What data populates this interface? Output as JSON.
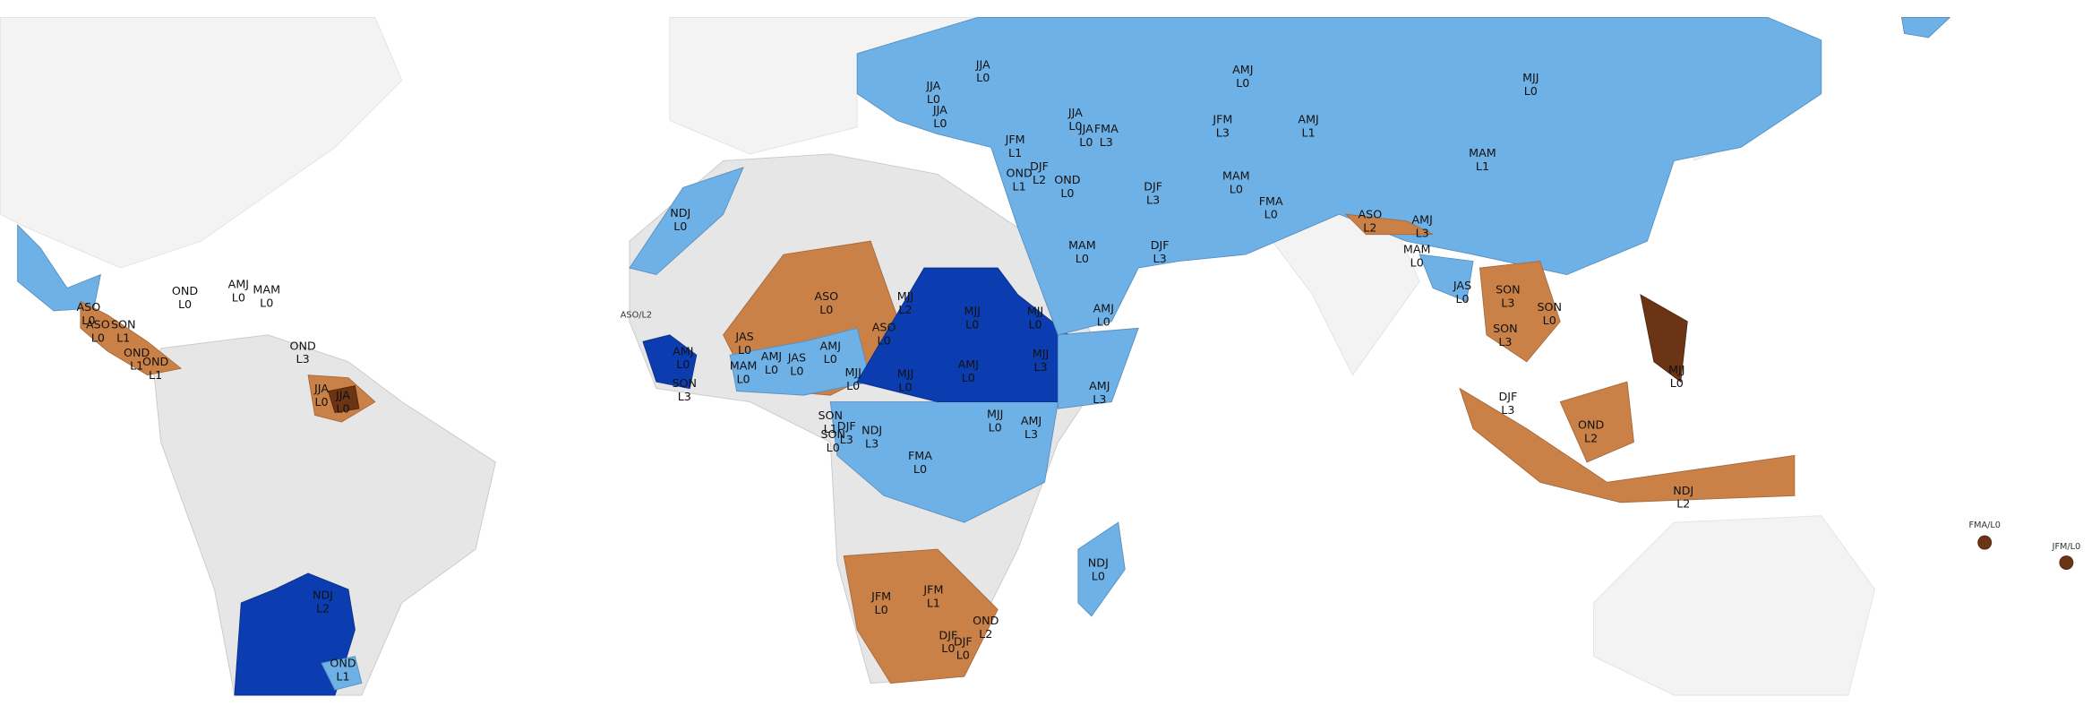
{
  "labels": [
    {
      "season": "NDJ",
      "level": "L0"
    },
    {
      "season": "JJA",
      "level": "L0"
    },
    {
      "season": "JJA",
      "level": "L0"
    },
    {
      "season": "JJA",
      "level": "L0"
    },
    {
      "season": "AMJ",
      "level": "L0"
    },
    {
      "season": "MJJ",
      "level": "L0"
    },
    {
      "season": "JFM",
      "level": "L3"
    },
    {
      "season": "AMJ",
      "level": "L1"
    },
    {
      "season": "JJA",
      "level": "L0"
    },
    {
      "season": "JJA",
      "level": "L0"
    },
    {
      "season": "FMA",
      "level": "L3"
    },
    {
      "season": "JFM",
      "level": "L1"
    },
    {
      "season": "MAM",
      "level": "L1"
    },
    {
      "season": "DJF",
      "level": "L2"
    },
    {
      "season": "OND",
      "level": "L1"
    },
    {
      "season": "OND",
      "level": "L0"
    },
    {
      "season": "DJF",
      "level": "L3"
    },
    {
      "season": "MAM",
      "level": "L0"
    },
    {
      "season": "FMA",
      "level": "L0"
    },
    {
      "season": "ASO",
      "level": "L2"
    },
    {
      "season": "AMJ",
      "level": "L3"
    },
    {
      "season": "MAM",
      "level": "L0"
    },
    {
      "season": "DJF",
      "level": "L3"
    },
    {
      "season": "MAM",
      "level": "L0"
    },
    {
      "season": "JAS",
      "level": "L0"
    },
    {
      "season": "SON",
      "level": "L3"
    },
    {
      "season": "SON",
      "level": "L0"
    },
    {
      "season": "SON",
      "level": "L3"
    },
    {
      "season": "ASO",
      "level": "L0"
    },
    {
      "season": "MJJ",
      "level": "L2"
    },
    {
      "season": "MJJ",
      "level": "L0"
    },
    {
      "season": "MJJ",
      "level": "L0"
    },
    {
      "season": "AMJ",
      "level": "L0"
    },
    {
      "season": "ASO",
      "level": "L0"
    },
    {
      "season": "JAS",
      "level": "L0"
    },
    {
      "season": "AMJ",
      "level": "L0"
    },
    {
      "season": "JAS",
      "level": "L0"
    },
    {
      "season": "AMJ",
      "level": "L0"
    },
    {
      "season": "MAM",
      "level": "L0"
    },
    {
      "season": "MJJ",
      "level": "L0"
    },
    {
      "season": "MJJ",
      "level": "L0"
    },
    {
      "season": "AMJ",
      "level": "L0"
    },
    {
      "season": "MJJ",
      "level": "L3"
    },
    {
      "season": "AMJ",
      "level": "L3"
    },
    {
      "season": "AMJ",
      "level": "L0"
    },
    {
      "season": "SON",
      "level": "L3"
    },
    {
      "season": "NDJ",
      "level": "L3"
    },
    {
      "season": "DJF",
      "level": "L3"
    },
    {
      "season": "SON",
      "level": "L1"
    },
    {
      "season": "SON",
      "level": "L0"
    },
    {
      "season": "MJJ",
      "level": "L0"
    },
    {
      "season": "AMJ",
      "level": "L3"
    },
    {
      "season": "FMA",
      "level": "L0"
    },
    {
      "season": "NDJ",
      "level": "L0"
    },
    {
      "season": "JFM",
      "level": "L0"
    },
    {
      "season": "JFM",
      "level": "L1"
    },
    {
      "season": "DJF",
      "level": "L0"
    },
    {
      "season": "DJF",
      "level": "L0"
    },
    {
      "season": "OND",
      "level": "L2"
    },
    {
      "season": "OND",
      "level": "L2"
    },
    {
      "season": "DJF",
      "level": "L3"
    },
    {
      "season": "NDJ",
      "level": "L2"
    },
    {
      "season": "MJJ",
      "level": "L0"
    },
    {
      "season": "NDJ",
      "level": "L2"
    },
    {
      "season": "OND",
      "level": "L1"
    },
    {
      "season": "JJA",
      "level": "L0"
    },
    {
      "season": "JJA",
      "level": "L0"
    },
    {
      "season": "OND",
      "level": "L3"
    },
    {
      "season": "ASO",
      "level": "L0"
    },
    {
      "season": "ASO",
      "level": "L0"
    },
    {
      "season": "SON",
      "level": "L1"
    },
    {
      "season": "OND",
      "level": "L1"
    },
    {
      "season": "OND",
      "level": "L1"
    },
    {
      "season": "OND",
      "level": "L0"
    },
    {
      "season": "AMJ",
      "level": "L0"
    },
    {
      "season": "MAM",
      "level": "L0"
    },
    {
      "label": "FMA/L0"
    },
    {
      "label": "JFM/L0"
    },
    {
      "label": "ASO/L2"
    }
  ]
}
